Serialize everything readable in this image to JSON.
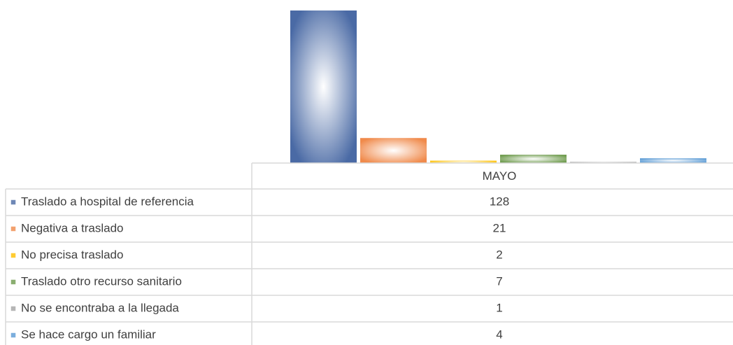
{
  "chart_data": {
    "type": "bar",
    "categories": [
      "MAYO"
    ],
    "series": [
      {
        "name": "Traslado a hospital de referencia",
        "color": "#4a6aa5",
        "values": [
          128
        ]
      },
      {
        "name": "Negativa a traslado",
        "color": "#f08a4b",
        "values": [
          21
        ]
      },
      {
        "name": "No precisa traslado",
        "color": "#ffc000",
        "values": [
          2
        ]
      },
      {
        "name": "Traslado otro recurso sanitario",
        "color": "#6e9b4d",
        "values": [
          7
        ]
      },
      {
        "name": "No se encontraba a la llegada",
        "color": "#a5a5a5",
        "values": [
          1
        ]
      },
      {
        "name": "Se hace cargo un familiar",
        "color": "#5b9bd5",
        "values": [
          4
        ]
      }
    ]
  }
}
